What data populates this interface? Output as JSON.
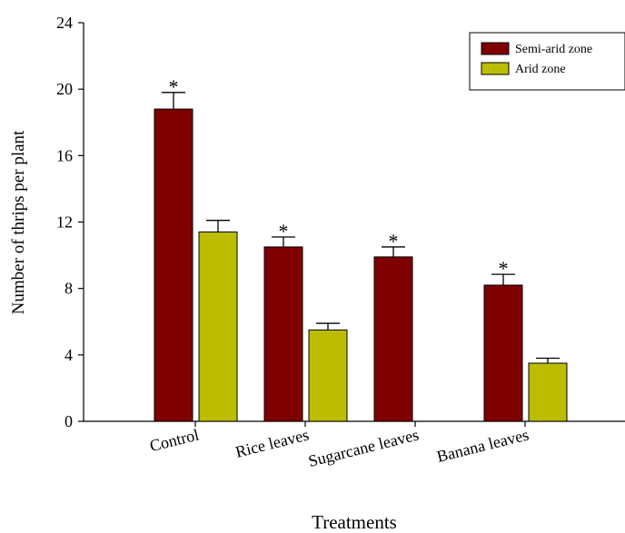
{
  "chart_data": {
    "type": "bar",
    "title": "",
    "xlabel": "Treatments",
    "ylabel": "Number of thrips per plant",
    "ylim": [
      0,
      24
    ],
    "yticks": [
      "0",
      "4",
      "8",
      "12",
      "16",
      "20",
      "24"
    ],
    "categories": [
      "Control",
      "Rice leaves",
      "Sugarcane leaves",
      "Banana leaves"
    ],
    "series": [
      {
        "name": "Semi-arid zone",
        "color": "#7f0000",
        "values": [
          18.8,
          10.5,
          9.9,
          8.2
        ],
        "errors": [
          1.0,
          0.6,
          0.6,
          0.65
        ],
        "markers": [
          "*",
          "*",
          "*",
          "*"
        ]
      },
      {
        "name": "Arid zone",
        "color": "#bcbd00",
        "values": [
          11.4,
          5.5,
          null,
          3.5
        ],
        "errors": [
          0.7,
          0.4,
          null,
          0.3
        ],
        "markers": [
          "",
          "",
          "",
          ""
        ]
      }
    ],
    "legend_position": "top-right",
    "grid": false
  }
}
